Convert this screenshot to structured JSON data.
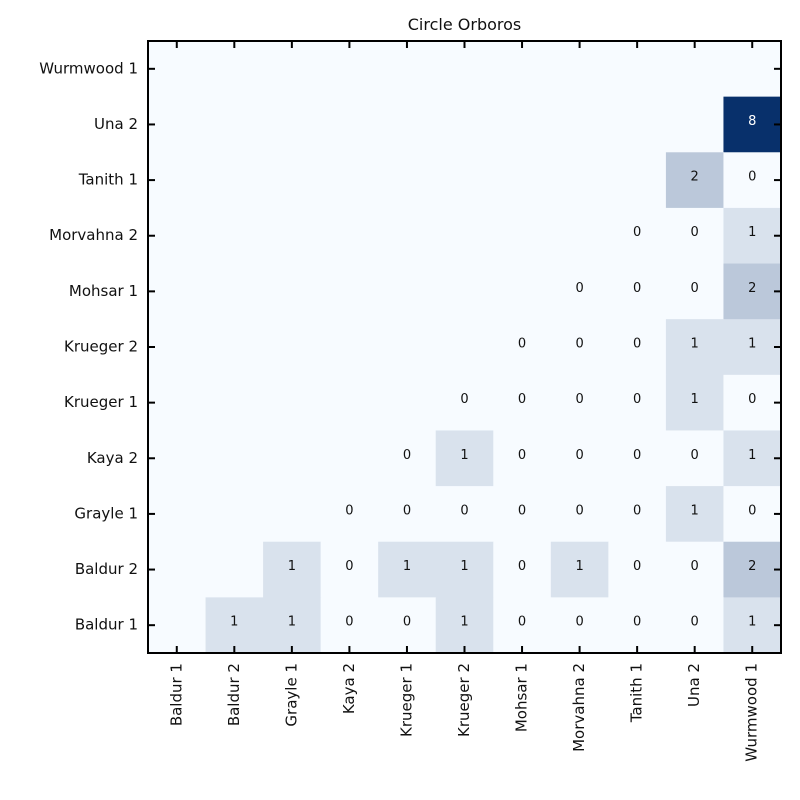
{
  "chart_data": {
    "type": "heatmap",
    "title": "Circle Orboros",
    "xlabel": "",
    "ylabel": "",
    "x_categories": [
      "Baldur 1",
      "Baldur 2",
      "Grayle 1",
      "Kaya 2",
      "Krueger 1",
      "Krueger 2",
      "Mohsar 1",
      "Morvahna 2",
      "Tanith 1",
      "Una 2",
      "Wurmwood 1"
    ],
    "y_categories_top_to_bottom": [
      "Wurmwood 1",
      "Una 2",
      "Tanith 1",
      "Morvahna 2",
      "Mohsar 1",
      "Krueger 2",
      "Krueger 1",
      "Kaya 2",
      "Grayle 1",
      "Baldur 2",
      "Baldur 1"
    ],
    "values_top_to_bottom": [
      [
        null,
        null,
        null,
        null,
        null,
        null,
        null,
        null,
        null,
        null,
        null
      ],
      [
        null,
        null,
        null,
        null,
        null,
        null,
        null,
        null,
        null,
        null,
        8
      ],
      [
        null,
        null,
        null,
        null,
        null,
        null,
        null,
        null,
        null,
        2,
        0
      ],
      [
        null,
        null,
        null,
        null,
        null,
        null,
        null,
        null,
        0,
        0,
        1
      ],
      [
        null,
        null,
        null,
        null,
        null,
        null,
        null,
        0,
        0,
        0,
        2
      ],
      [
        null,
        null,
        null,
        null,
        null,
        null,
        0,
        0,
        0,
        1,
        1
      ],
      [
        null,
        null,
        null,
        null,
        null,
        0,
        0,
        0,
        0,
        1,
        0
      ],
      [
        null,
        null,
        null,
        null,
        0,
        1,
        0,
        0,
        0,
        0,
        1
      ],
      [
        null,
        null,
        null,
        0,
        0,
        0,
        0,
        0,
        0,
        1,
        0
      ],
      [
        null,
        null,
        1,
        0,
        1,
        1,
        0,
        1,
        0,
        0,
        2
      ],
      [
        null,
        1,
        1,
        0,
        0,
        1,
        0,
        0,
        0,
        0,
        1
      ]
    ],
    "color_scale": {
      "scheme": "Blues",
      "low": "#f7fbff",
      "high": "#08306b",
      "vmin": 0,
      "vmax": 8
    },
    "grid": false,
    "legend": "none"
  }
}
